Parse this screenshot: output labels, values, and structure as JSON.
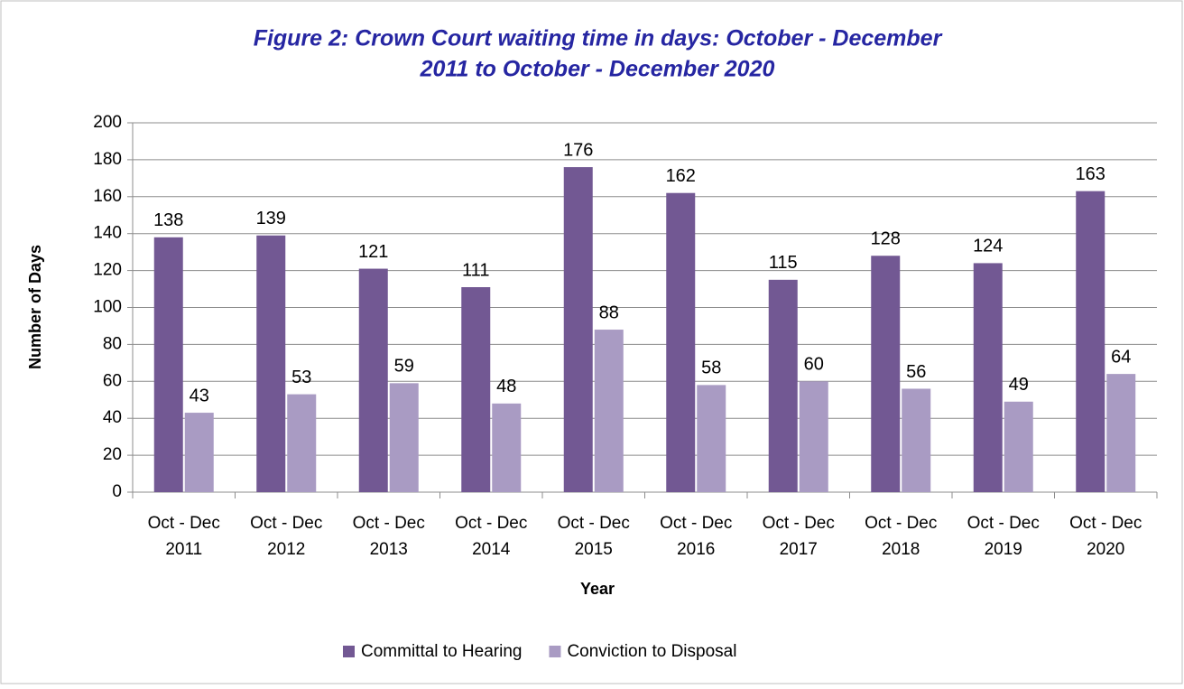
{
  "chart_data": {
    "type": "bar",
    "title": [
      "Figure 2: Crown Court waiting time in days: October - December",
      "2011 to October - December 2020"
    ],
    "x_label": "Year",
    "y_label": "Number of Days",
    "categories": [
      [
        "Oct - Dec",
        "2011"
      ],
      [
        "Oct - Dec",
        "2012"
      ],
      [
        "Oct - Dec",
        "2013"
      ],
      [
        "Oct - Dec",
        "2014"
      ],
      [
        "Oct - Dec",
        "2015"
      ],
      [
        "Oct - Dec",
        "2016"
      ],
      [
        "Oct - Dec",
        "2017"
      ],
      [
        "Oct - Dec",
        "2018"
      ],
      [
        "Oct - Dec",
        "2019"
      ],
      [
        "Oct - Dec",
        "2020"
      ]
    ],
    "series": [
      {
        "name": "Committal to Hearing",
        "color": "#725893",
        "values": [
          138,
          139,
          121,
          111,
          176,
          162,
          115,
          128,
          124,
          163
        ]
      },
      {
        "name": "Conviction to Disposal",
        "color": "#a99bc3",
        "values": [
          43,
          53,
          59,
          48,
          88,
          58,
          60,
          56,
          49,
          64
        ]
      }
    ],
    "ylim": [
      0,
      200
    ],
    "yticks": [
      0,
      20,
      40,
      60,
      80,
      100,
      120,
      140,
      160,
      180,
      200
    ],
    "grid": true,
    "legend": "bottom"
  }
}
